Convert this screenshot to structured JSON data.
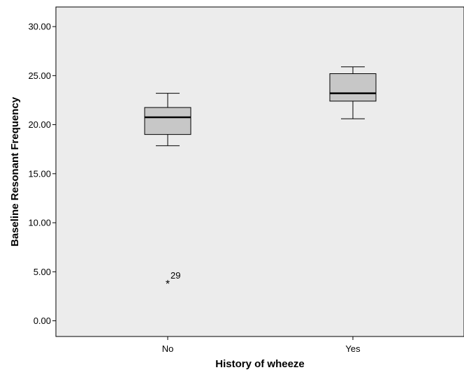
{
  "chart_data": {
    "type": "box",
    "title": "",
    "xlabel": "History of wheeze",
    "ylabel": "Baseline Resonant Frequency",
    "ylim": [
      -1.6,
      32.0
    ],
    "yticks": [
      0.0,
      5.0,
      10.0,
      15.0,
      20.0,
      25.0,
      30.0
    ],
    "ytick_labels": [
      "0.00",
      "5.00",
      "10.00",
      "15.00",
      "20.00",
      "25.00",
      "30.00"
    ],
    "categories": [
      "No",
      "Yes"
    ],
    "boxes": [
      {
        "category": "No",
        "whisker_low": 17.85,
        "q1": 19.0,
        "median": 20.75,
        "q3": 21.75,
        "whisker_high": 23.2,
        "outliers": [
          {
            "value": 3.8,
            "label": "29",
            "marker": "*"
          }
        ]
      },
      {
        "category": "Yes",
        "whisker_low": 20.6,
        "q1": 22.4,
        "median": 23.2,
        "q3": 25.2,
        "whisker_high": 25.9,
        "outliers": []
      }
    ],
    "grid": false,
    "colors": {
      "plot_background": "#ececec",
      "box_fill": "#c7c7c7",
      "line": "#000000"
    }
  }
}
